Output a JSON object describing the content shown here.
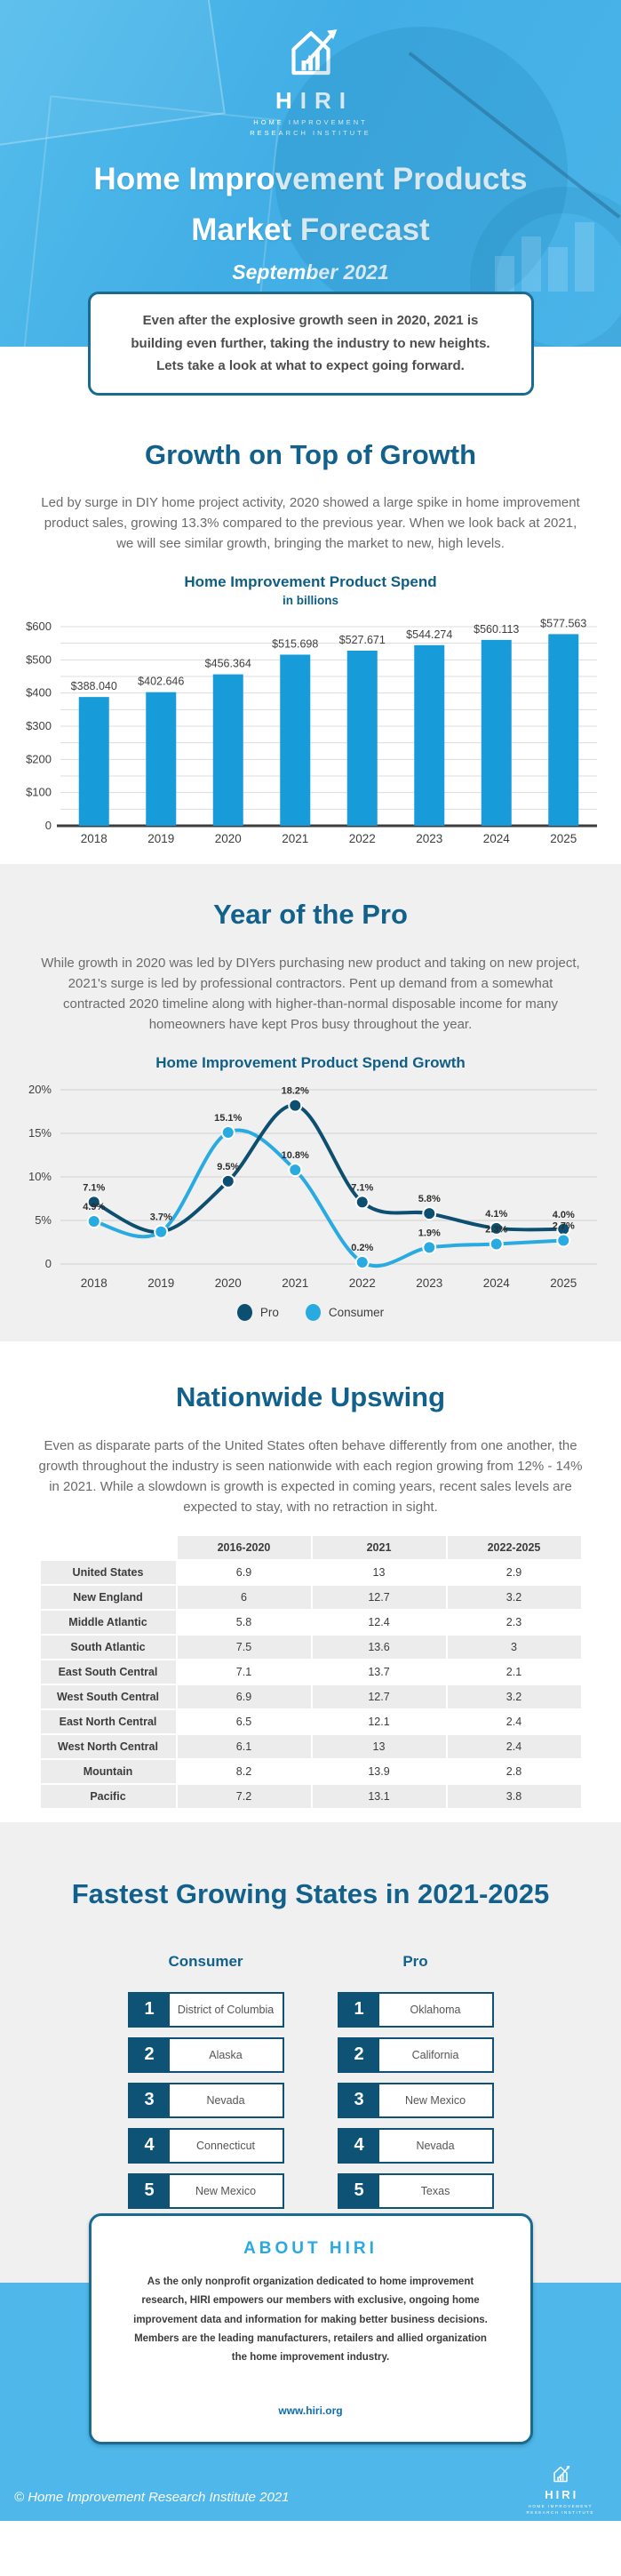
{
  "hero": {
    "logo": {
      "name": "HIRI",
      "tagline_line1": "HOME IMPROVEMENT",
      "tagline_line2": "RESEARCH INSTITUTE"
    },
    "title_line1": "Home Improvement Products",
    "title_line2": "Market Forecast",
    "date": "September 2021"
  },
  "intro_callout": "Even after the explosive growth seen in 2020, 2021 is building even further, taking the industry to new heights. Lets take a look at what to expect going forward.",
  "growth_section": {
    "heading": "Growth on Top of Growth",
    "paragraph": "Led by surge in DIY home project activity, 2020 showed a large spike in home improvement product sales, growing 13.3% compared to the previous year. When we look back at 2021, we will see similar growth, bringing the market to new, high levels."
  },
  "pro_section": {
    "heading": "Year of the Pro",
    "paragraph": "While growth in 2020 was led by DIYers purchasing new product and taking on new project, 2021's surge is led by professional contractors. Pent up demand from a somewhat contracted 2020 timeline along with higher-than-normal disposable income for many homeowners have kept Pros busy throughout the year."
  },
  "nationwide_section": {
    "heading": "Nationwide Upswing",
    "paragraph": "Even as disparate parts of the United States often behave differently from one another, the growth throughout the industry is seen nationwide with each region growing from 12% - 14% in 2021. While a slowdown is growth is expected in coming years, recent sales levels are expected to stay, with no retraction in sight.",
    "table": {
      "columns": [
        "",
        "2016-2020",
        "2021",
        "2022-2025"
      ],
      "rows": [
        [
          "United States",
          "6.9",
          "13",
          "2.9"
        ],
        [
          "New England",
          "6",
          "12.7",
          "3.2"
        ],
        [
          "Middle Atlantic",
          "5.8",
          "12.4",
          "2.3"
        ],
        [
          "South Atlantic",
          "7.5",
          "13.6",
          "3"
        ],
        [
          "East South Central",
          "7.1",
          "13.7",
          "2.1"
        ],
        [
          "West South Central",
          "6.9",
          "12.7",
          "3.2"
        ],
        [
          "East North Central",
          "6.5",
          "12.1",
          "2.4"
        ],
        [
          "West North Central",
          "6.1",
          "13",
          "2.4"
        ],
        [
          "Mountain",
          "8.2",
          "13.9",
          "2.8"
        ],
        [
          "Pacific",
          "7.2",
          "13.1",
          "3.8"
        ]
      ]
    }
  },
  "fastest_section": {
    "heading": "Fastest Growing States in 2021-2025",
    "lists": [
      {
        "title": "Consumer",
        "items": [
          "District of Columbia",
          "Alaska",
          "Nevada",
          "Connecticut",
          "New Mexico"
        ]
      },
      {
        "title": "Pro",
        "items": [
          "Oklahoma",
          "California",
          "New Mexico",
          "Nevada",
          "Texas"
        ]
      }
    ]
  },
  "about": {
    "heading": "ABOUT HIRI",
    "body": "As the only nonprofit organization dedicated to home improvement research, HIRI empowers our members with exclusive, ongoing home improvement data and information for making better business decisions. Members are the leading manufacturers, retailers and allied organization the home improvement industry.",
    "link": "www.hiri.org"
  },
  "footer": {
    "copyright": "© Home Improvement Research Institute 2021"
  },
  "colors": {
    "hero_blue": "#43b1e7",
    "footer_blue": "#4fb7e9",
    "heading_blue": "#12618c",
    "accent_bright_blue": "#29a9e1",
    "dark_navy": "#0e5276",
    "bar_blue": "#189cd9",
    "pro_line": "#0d4f70",
    "consumer_line": "#29abe2",
    "section_gray": "#f0f0f0",
    "cell_gray": "#ececec"
  },
  "chart_data": [
    {
      "type": "bar",
      "title": "Home Improvement Product Spend",
      "subtitle": "in billions",
      "categories": [
        "2018",
        "2019",
        "2020",
        "2021",
        "2022",
        "2023",
        "2024",
        "2025"
      ],
      "values": [
        388.04,
        402.646,
        456.364,
        515.698,
        527.671,
        544.274,
        560.113,
        577.563
      ],
      "bar_labels": [
        "$388.040",
        "$402.646",
        "$456.364",
        "$515.698",
        "$527.671",
        "$544.274",
        "$560.113",
        "$577.563"
      ],
      "xlabel": "",
      "ylabel": "",
      "ylim": [
        0,
        600
      ],
      "grid_step": 50,
      "ytick_step": 100,
      "ytick_labels": [
        "0",
        "$100",
        "$200",
        "$300",
        "$400",
        "$500",
        "$600"
      ],
      "grid": true,
      "bar_color": "#189cd9"
    },
    {
      "type": "line",
      "title": "Home Improvement Product Spend Growth",
      "x": [
        "2018",
        "2019",
        "2020",
        "2021",
        "2022",
        "2023",
        "2024",
        "2025"
      ],
      "ylim": [
        0,
        20
      ],
      "grid_step": 5,
      "ytick_labels": [
        "0",
        "5%",
        "10%",
        "15%",
        "20%"
      ],
      "grid": true,
      "legend_position": "bottom",
      "series": [
        {
          "name": "Pro",
          "color": "#0d4f70",
          "values": [
            7.1,
            3.7,
            9.5,
            18.2,
            7.1,
            5.8,
            4.1,
            4.0
          ],
          "labels": [
            "7.1%",
            "",
            "9.5%",
            "18.2%",
            "7.1%",
            "5.8%",
            "4.1%",
            "4.0%"
          ]
        },
        {
          "name": "Consumer",
          "color": "#29abe2",
          "values": [
            4.9,
            3.7,
            15.1,
            10.8,
            0.2,
            1.9,
            2.3,
            2.7
          ],
          "labels": [
            "4.9%",
            "3.7%",
            "15.1%",
            "10.8%",
            "0.2%",
            "1.9%",
            "2.3%",
            "2.7%"
          ]
        }
      ]
    }
  ]
}
